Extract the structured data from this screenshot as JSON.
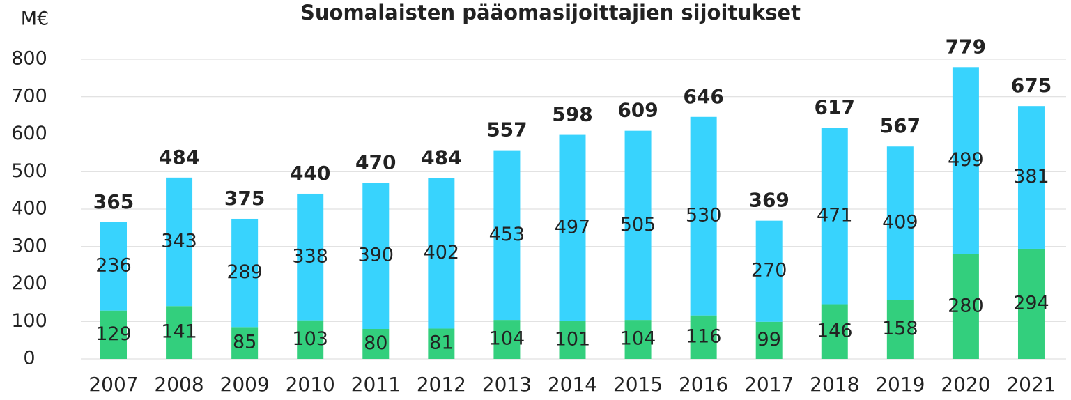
{
  "chart_data": {
    "type": "stacked_bar",
    "title": "Suomalaisten pääomasijoittajien sijoitukset",
    "y_label": "M€",
    "categories": [
      "2007",
      "2008",
      "2009",
      "2010",
      "2011",
      "2012",
      "2013",
      "2014",
      "2015",
      "2016",
      "2017",
      "2018",
      "2019",
      "2020",
      "2021"
    ],
    "series": [
      {
        "color": "#33cf7d",
        "values": [
          129,
          141,
          85,
          103,
          80,
          81,
          104,
          101,
          104,
          116,
          99,
          146,
          158,
          280,
          294
        ]
      },
      {
        "color": "#38d3fd",
        "values": [
          236,
          343,
          289,
          338,
          390,
          402,
          453,
          497,
          505,
          530,
          270,
          471,
          409,
          499,
          381
        ]
      }
    ],
    "totals": [
      365,
      484,
      375,
      440,
      470,
      484,
      557,
      598,
      609,
      646,
      369,
      617,
      567,
      779,
      675
    ],
    "ylim": [
      0,
      800
    ],
    "yticks": [
      0,
      100,
      200,
      300,
      400,
      500,
      600,
      700,
      800
    ],
    "grid": true
  }
}
